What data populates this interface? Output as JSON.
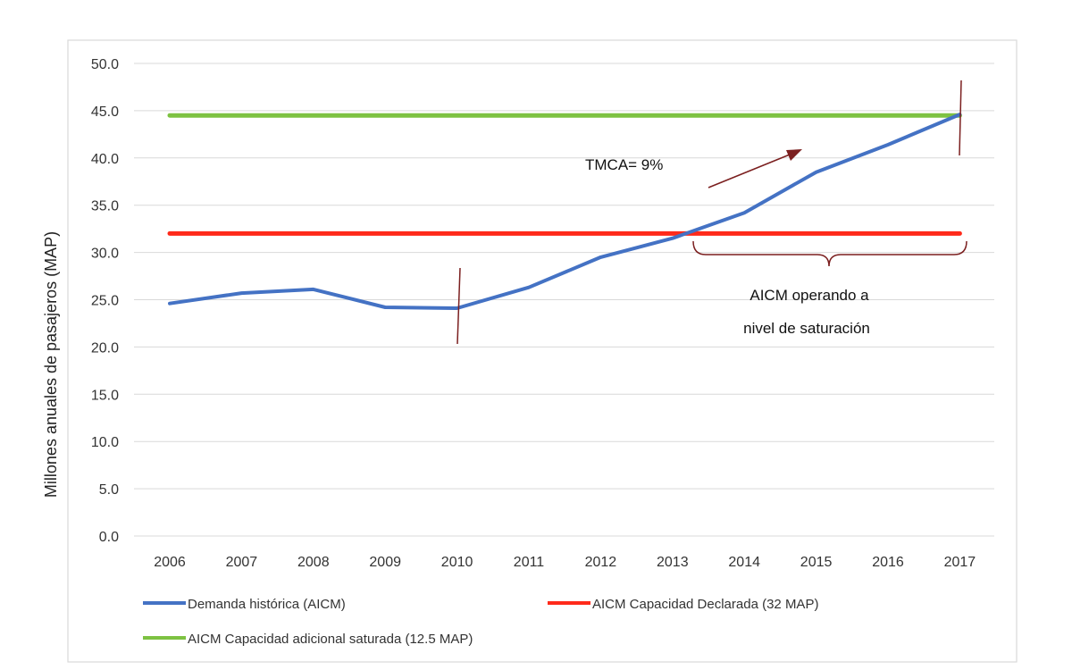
{
  "chart_data": {
    "type": "line",
    "ylabel": "Millones anuales de pasajeros (MAP)",
    "ylim": [
      0,
      50
    ],
    "yticks": [
      "0.0",
      "5.0",
      "10.0",
      "15.0",
      "20.0",
      "25.0",
      "30.0",
      "35.0",
      "40.0",
      "45.0",
      "50.0"
    ],
    "categories": [
      "2006",
      "2007",
      "2008",
      "2009",
      "2010",
      "2011",
      "2012",
      "2013",
      "2014",
      "2015",
      "2016",
      "2017"
    ],
    "grid": true,
    "legend_position": "bottom",
    "series": [
      {
        "name": "Demanda histórica (AICM)",
        "color": "#4472C4",
        "values": [
          24.6,
          25.7,
          26.1,
          24.2,
          24.1,
          26.3,
          29.5,
          31.5,
          34.2,
          38.5,
          41.4,
          44.6
        ]
      },
      {
        "name": "AICM Capacidad Declarada (32 MAP)",
        "color": "#FF2A1A",
        "values": [
          32,
          32,
          32,
          32,
          32,
          32,
          32,
          32,
          32,
          32,
          32,
          32
        ]
      },
      {
        "name": "AICM Capacidad adicional saturada (12.5 MAP)",
        "color": "#7DC242",
        "values": [
          44.5,
          44.5,
          44.5,
          44.5,
          44.5,
          44.5,
          44.5,
          44.5,
          44.5,
          44.5,
          44.5,
          44.5
        ]
      }
    ],
    "annotations": {
      "growth": "TMCA= 9%",
      "saturation_line1": "AICM operando a",
      "saturation_line2": "nivel de saturación",
      "marker_color": "#7B1F1F"
    }
  }
}
